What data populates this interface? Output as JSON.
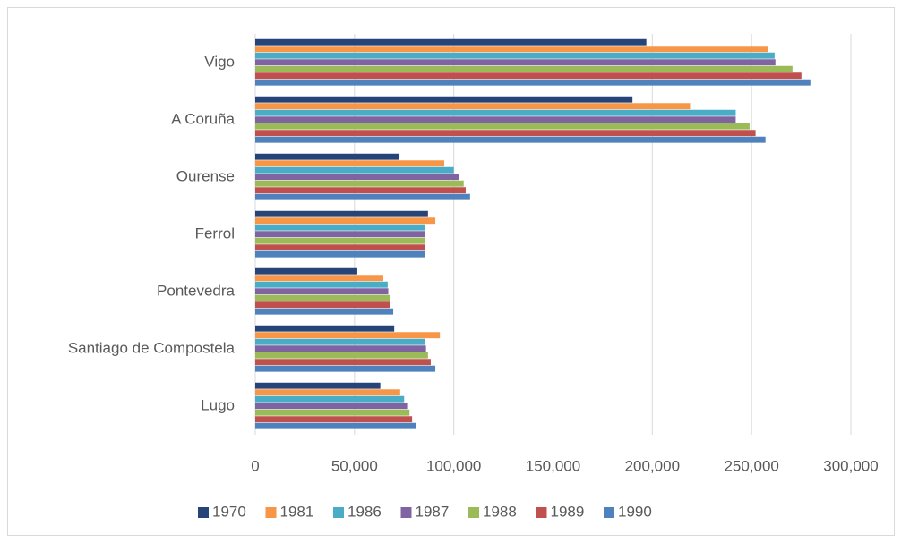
{
  "chart_data": {
    "type": "bar",
    "orientation": "horizontal",
    "categories": [
      "Vigo",
      "A Coruña",
      "Ourense",
      "Ferrol",
      "Pontevedra",
      "Santiago de Compostela",
      "Lugo"
    ],
    "series": [
      {
        "name": "1970",
        "color": "#264478",
        "values": [
          197000,
          190000,
          72600,
          87000,
          51400,
          70000,
          63000
        ]
      },
      {
        "name": "1981",
        "color": "#f79646",
        "values": [
          258500,
          219000,
          95200,
          90700,
          64500,
          93000,
          73000
        ]
      },
      {
        "name": "1986",
        "color": "#4bacc6",
        "values": [
          261600,
          242000,
          100000,
          85700,
          66700,
          85300,
          75000
        ]
      },
      {
        "name": "1987",
        "color": "#8064a2",
        "values": [
          262000,
          242000,
          102400,
          85700,
          67000,
          86000,
          76500
        ]
      },
      {
        "name": "1988",
        "color": "#9bbb59",
        "values": [
          270600,
          249000,
          105000,
          85700,
          67700,
          87000,
          77700
        ]
      },
      {
        "name": "1989",
        "color": "#c0504d",
        "values": [
          275100,
          252000,
          106000,
          85700,
          68100,
          88400,
          79000
        ]
      },
      {
        "name": "1990",
        "color": "#4f81bd",
        "values": [
          279600,
          257000,
          108200,
          85500,
          69500,
          90700,
          80800
        ]
      }
    ],
    "xlim": [
      0,
      300000
    ],
    "xticks": [
      0,
      {
        "value": 50000,
        "label": "50,000"
      },
      {
        "value": 100000,
        "label": "100,000"
      },
      {
        "value": 150000,
        "label": "150,000"
      },
      {
        "value": 200000,
        "label": "200,000"
      },
      {
        "value": 250000,
        "label": "250,000"
      },
      {
        "value": 300000,
        "label": "300,000"
      }
    ],
    "grid": true,
    "legend": "bottom"
  }
}
